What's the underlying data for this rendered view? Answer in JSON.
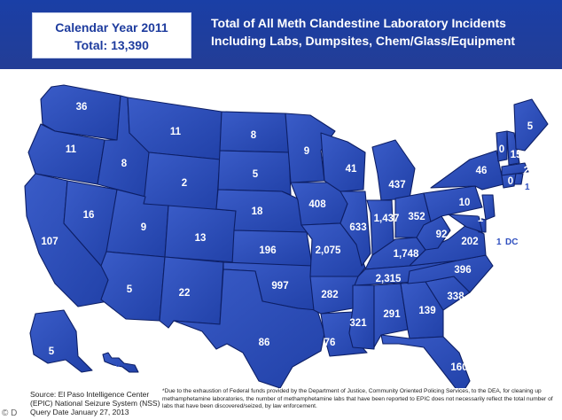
{
  "header": {
    "year_label": "Calendar Year 2011",
    "total_label": "Total: 13,390",
    "title_line1": "Total of All Meth Clandestine Laboratory Incidents",
    "title_line2": "Including Labs, Dumpsites, Chem/Glass/Equipment"
  },
  "states": {
    "WA": "36",
    "OR": "11",
    "CA": "107",
    "NV": "16",
    "ID": "8",
    "MT": "11",
    "WY": "2",
    "UT": "9",
    "AZ": "5",
    "CO": "13",
    "NM": "22",
    "ND": "8",
    "SD": "5",
    "NE": "18",
    "KS": "196",
    "OK": "997",
    "TX": "86",
    "MN": "9",
    "IA": "408",
    "MO": "2,075",
    "AR": "282",
    "LA": "76",
    "WI": "41",
    "IL": "633",
    "MI": "437",
    "IN": "1,437",
    "OH": "352",
    "KY": "1,748",
    "TN": "2,315",
    "MS": "321",
    "AL": "291",
    "GA": "139",
    "FL": "160",
    "SC": "338",
    "NC": "396",
    "VA": "202",
    "WV": "92",
    "PA": "10",
    "NY": "46",
    "VT": "0",
    "NH": "15",
    "ME": "5",
    "MA": "2",
    "CT": "0",
    "RI": "1",
    "NJ": "0",
    "DE": "1",
    "MD": "2",
    "DC_value": "1",
    "DC_label": "DC",
    "AK": "5",
    "HI": "0"
  },
  "source": {
    "line1": "Source: El Paso Intelligence Center",
    "line2": "(EPIC) National Seizure System (NSS)",
    "line3": "Query Date January 27, 2013"
  },
  "footnote": "*Due to the exhaustion of Federal funds provided by the Department of Justice, Community Oriented Policing Services, to the DEA, for cleaning up methamphetamine laboratories, the number of methamphetamine labs that have been reported to EPIC does not necessarily reflect the total number of labs that have been discovered/seized, by law enforcement.",
  "watermark": "© D",
  "colors": {
    "header_bg": "#233d96",
    "state_fill": "#2b4bb8",
    "border": "#0d1f66"
  }
}
